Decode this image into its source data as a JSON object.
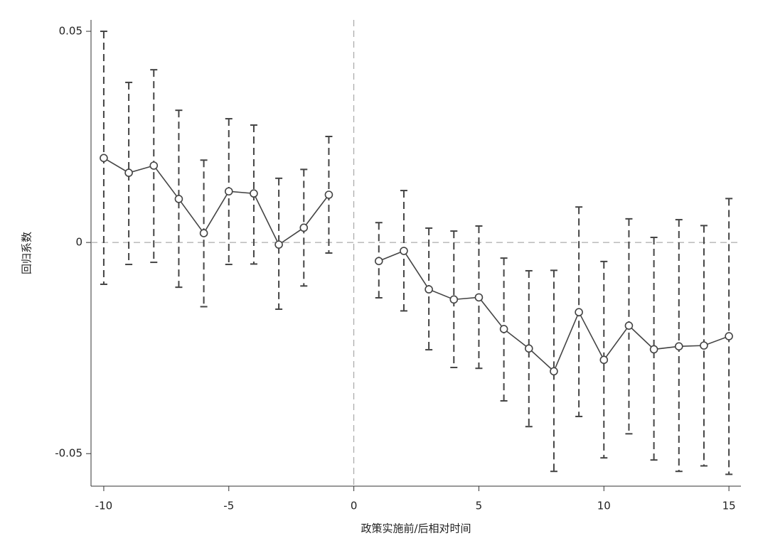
{
  "chart_data": {
    "type": "line",
    "y_label": "回归系数",
    "x_label": "政策实施前/后相对时间",
    "x": [
      -10,
      -9,
      -8,
      -7,
      -6,
      -5,
      -4,
      -3,
      -2,
      -1,
      0,
      1,
      2,
      3,
      4,
      5,
      6,
      7,
      8,
      9,
      10,
      11,
      12,
      13,
      14,
      15
    ],
    "values": [
      0.02,
      0.0165,
      0.0182,
      0.0103,
      0.0022,
      0.0121,
      0.0116,
      -0.0005,
      0.0035,
      0.0113,
      null,
      -0.0044,
      -0.002,
      -0.0111,
      -0.0135,
      -0.013,
      -0.0205,
      -0.0251,
      -0.0305,
      -0.0165,
      -0.0278,
      -0.0197,
      -0.0253,
      -0.0246,
      -0.0244,
      -0.0222
    ],
    "ci_lower": [
      -0.0099,
      -0.0052,
      -0.0047,
      -0.0106,
      -0.0152,
      -0.0052,
      -0.0051,
      -0.0158,
      -0.0103,
      -0.0025,
      null,
      -0.0131,
      -0.0162,
      -0.0254,
      -0.0296,
      -0.0298,
      -0.0375,
      -0.0436,
      -0.0542,
      -0.0412,
      -0.051,
      -0.0453,
      -0.0515,
      -0.0542,
      -0.0529,
      -0.0549
    ],
    "ci_upper": [
      0.05,
      0.0379,
      0.0409,
      0.0313,
      0.0195,
      0.0293,
      0.0278,
      0.0152,
      0.0173,
      0.0251,
      null,
      0.0047,
      0.0123,
      0.0034,
      0.0027,
      0.0039,
      -0.0037,
      -0.0067,
      -0.0066,
      0.0084,
      -0.0045,
      0.0056,
      0.0012,
      0.0054,
      0.004,
      0.0104
    ],
    "color": "#444444",
    "xlim": [
      -10.51,
      15.48
    ],
    "ylim": [
      -0.0577,
      0.0527
    ],
    "xticks": [
      -10,
      -5,
      0,
      5,
      10,
      15
    ],
    "yticks": [
      -0.05,
      0,
      0.05
    ],
    "vline": 0,
    "hline": 0
  }
}
